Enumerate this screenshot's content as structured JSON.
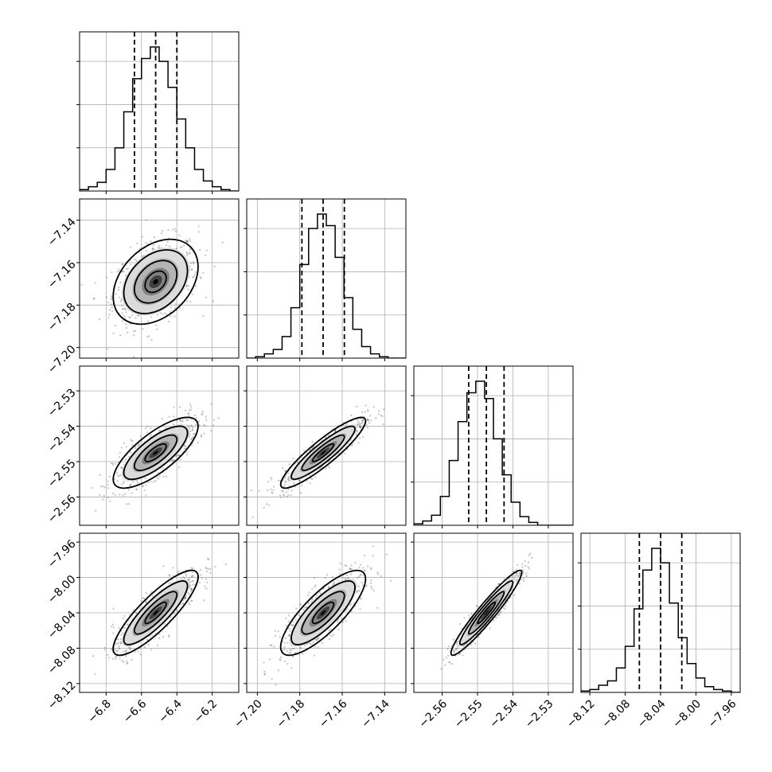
{
  "chart_data": {
    "type": "corner",
    "title": "",
    "grid": true,
    "parameters": [
      {
        "name": "",
        "ylim": [
          0,
          1
        ],
        "hist_range": [
          -6.95,
          -6.05
        ],
        "median": -6.52,
        "quantiles": [
          -6.64,
          -6.52,
          -6.4
        ],
        "spread": 0.12,
        "ticks": [
          -6.8,
          -6.6,
          -6.4,
          -6.2
        ],
        "tick_labels": [
          "−6.8",
          "−6.6",
          "−6.4",
          "−6.2"
        ],
        "hist_counts": [
          0.01,
          0.03,
          0.06,
          0.15,
          0.3,
          0.55,
          0.78,
          0.92,
          1.0,
          0.9,
          0.72,
          0.5,
          0.3,
          0.15,
          0.07,
          0.03,
          0.01,
          0.0
        ]
      },
      {
        "name": "",
        "hist_range": [
          -7.205,
          -7.13
        ],
        "median": -7.169,
        "quantiles": [
          -7.179,
          -7.169,
          -7.159
        ],
        "spread": 0.01,
        "ticks": [
          -7.2,
          -7.18,
          -7.16,
          -7.14
        ],
        "tick_labels": [
          "−7.20",
          "−7.18",
          "−7.16",
          "−7.14"
        ],
        "hist_counts": [
          0.0,
          0.01,
          0.03,
          0.06,
          0.15,
          0.35,
          0.65,
          0.9,
          1.0,
          0.92,
          0.7,
          0.42,
          0.2,
          0.08,
          0.03,
          0.01,
          0.0,
          0.0
        ]
      },
      {
        "name": "",
        "hist_range": [
          -2.568,
          -2.523
        ],
        "median": -2.5475,
        "quantiles": [
          -2.5525,
          -2.5475,
          -2.5425
        ],
        "spread": 0.005,
        "ticks": [
          -2.56,
          -2.55,
          -2.54,
          -2.53
        ],
        "tick_labels": [
          "−2.56",
          "−2.55",
          "−2.54",
          "−2.53"
        ],
        "hist_counts": [
          0.01,
          0.03,
          0.07,
          0.2,
          0.45,
          0.72,
          0.92,
          1.0,
          0.88,
          0.6,
          0.35,
          0.16,
          0.06,
          0.02,
          0.0,
          0.0,
          0.0,
          0.0
        ]
      },
      {
        "name": "",
        "hist_range": [
          -8.13,
          -7.95
        ],
        "median": -8.04,
        "quantiles": [
          -8.064,
          -8.04,
          -8.016
        ],
        "spread": 0.024,
        "ticks": [
          -8.12,
          -8.08,
          -8.04,
          -8.0,
          -7.96
        ],
        "tick_labels": [
          "−8.12",
          "−8.08",
          "−8.04",
          "−8.00",
          "−7.96"
        ],
        "hist_counts": [
          0.01,
          0.02,
          0.05,
          0.08,
          0.17,
          0.32,
          0.58,
          0.85,
          1.0,
          0.9,
          0.62,
          0.38,
          0.2,
          0.1,
          0.04,
          0.02,
          0.01,
          0.0
        ]
      }
    ],
    "correlations": [
      [
        1.0,
        0.35,
        0.75,
        0.85
      ],
      [
        0.35,
        1.0,
        0.9,
        0.8
      ],
      [
        0.75,
        0.9,
        1.0,
        0.95
      ],
      [
        0.85,
        0.8,
        0.95,
        1.0
      ]
    ],
    "contour_levels_sigma": [
      0.5,
      1.0,
      1.5,
      2.0
    ]
  }
}
